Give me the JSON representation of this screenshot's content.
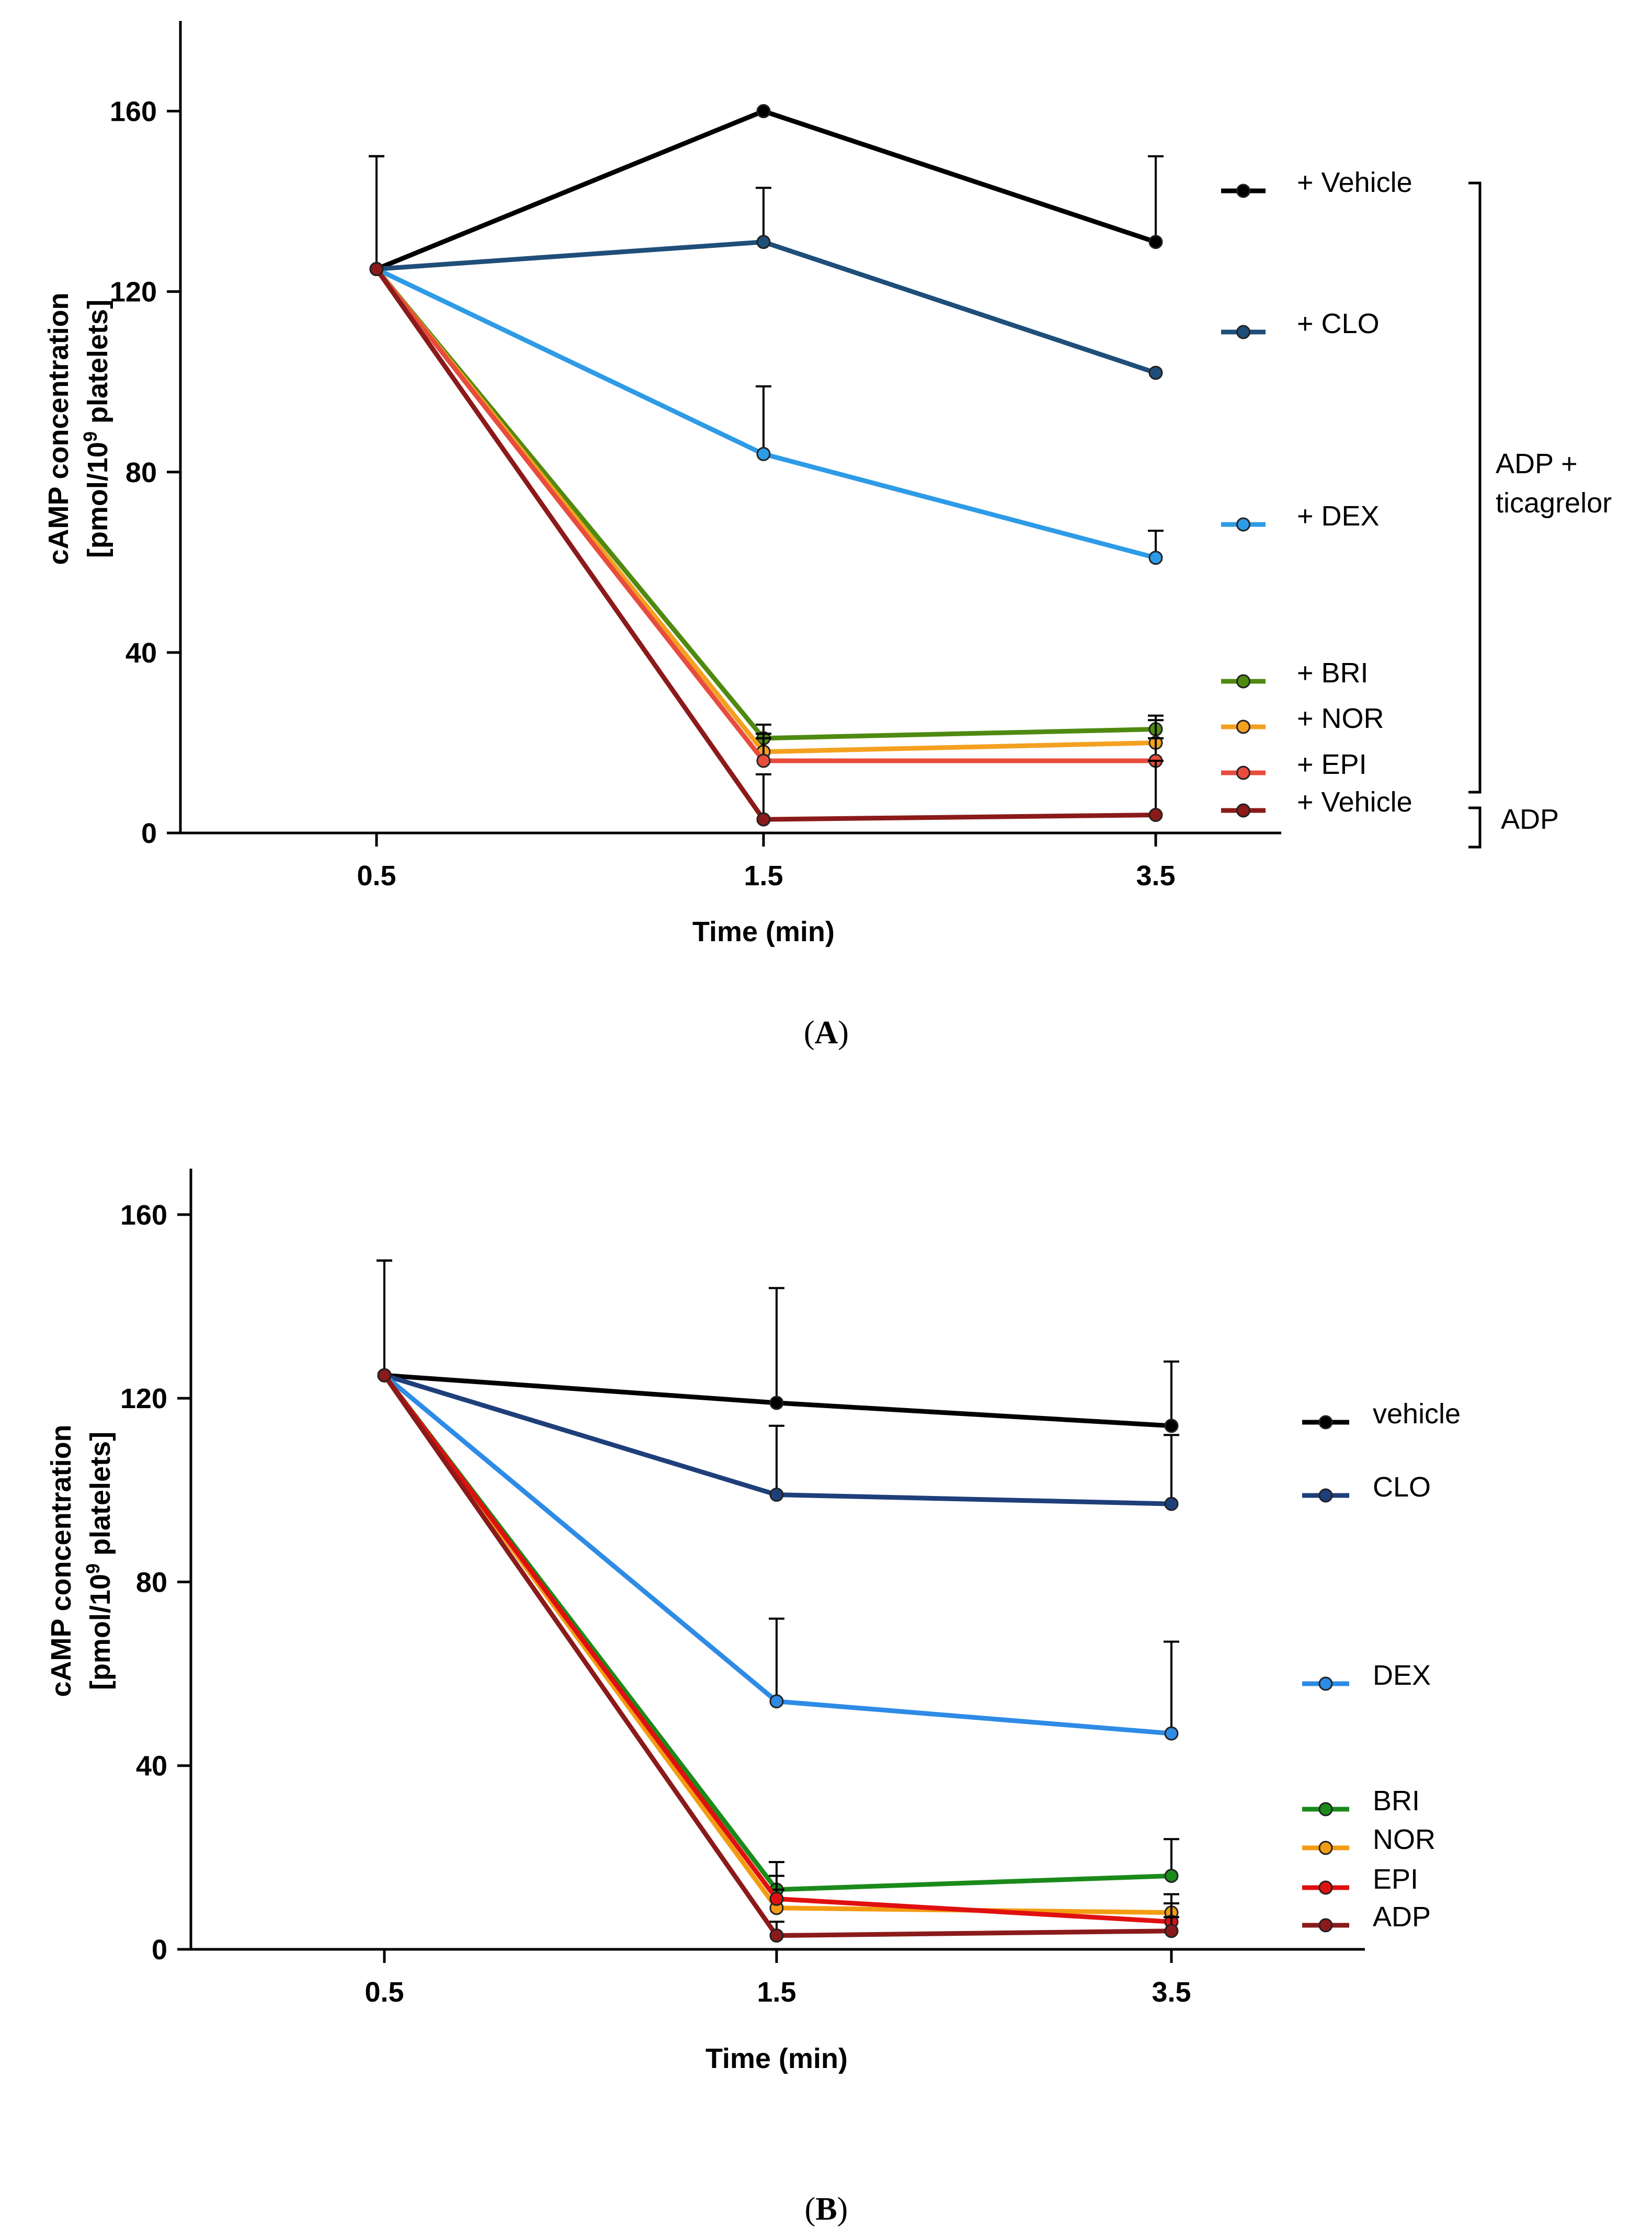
{
  "chart_data": [
    {
      "panel": "A",
      "caption": "A",
      "type": "line",
      "xlabel": "Time (min)",
      "ylabel_line1": "cAMP concentration",
      "ylabel_line2": "[pmol/10",
      "ylabel_sup": "9",
      "ylabel_line2_end": " platelets]",
      "ylim": [
        0,
        180
      ],
      "yticks": [
        0,
        40,
        80,
        120,
        160
      ],
      "categories": [
        "0.5",
        "1.5",
        "3.5"
      ],
      "series": [
        {
          "name": "+ Vehicle",
          "color": "#000000",
          "values": [
            125,
            160,
            131
          ],
          "err": [
            25,
            0,
            19
          ]
        },
        {
          "name": "+ CLO",
          "color": "#1f4e79",
          "values": [
            125,
            131,
            102
          ],
          "err": [
            25,
            12,
            0
          ]
        },
        {
          "name": "+ DEX",
          "color": "#2e9be6",
          "values": [
            125,
            84,
            61
          ],
          "err": [
            25,
            15,
            6
          ]
        },
        {
          "name": "+ BRI",
          "color": "#4f8a10",
          "values": [
            125,
            21,
            23
          ],
          "err": [
            25,
            3,
            3
          ]
        },
        {
          "name": "+ NOR",
          "color": "#f4a020",
          "values": [
            125,
            18,
            20
          ],
          "err": [
            25,
            4,
            5
          ]
        },
        {
          "name": "+ EPI",
          "color": "#e84c3d",
          "values": [
            125,
            16,
            16
          ],
          "err": [
            25,
            5,
            5
          ]
        },
        {
          "name": "+ Vehicle",
          "color": "#8b1a1a",
          "values": [
            125,
            3,
            4
          ],
          "err": [
            25,
            10,
            12
          ]
        }
      ],
      "brackets": [
        {
          "label_lines": [
            "ADP +",
            "ticagrelor"
          ],
          "series_from": 0,
          "series_to": 5
        },
        {
          "label_lines": [
            "ADP"
          ],
          "series_from": 6,
          "series_to": 6
        }
      ]
    },
    {
      "panel": "B",
      "caption": "B",
      "type": "line",
      "xlabel": "Time (min)",
      "ylabel_line1": "cAMP concentration",
      "ylabel_line2": "[pmol/10",
      "ylabel_sup": "9",
      "ylabel_line2_end": " platelets]",
      "ylim": [
        0,
        170
      ],
      "yticks": [
        0,
        40,
        80,
        120,
        160
      ],
      "categories": [
        "0.5",
        "1.5",
        "3.5"
      ],
      "series": [
        {
          "name": "vehicle",
          "color": "#000000",
          "values": [
            125,
            119,
            114
          ],
          "err": [
            25,
            25,
            14
          ]
        },
        {
          "name": "CLO",
          "color": "#1f3f7a",
          "values": [
            125,
            99,
            97
          ],
          "err": [
            25,
            15,
            15
          ]
        },
        {
          "name": "DEX",
          "color": "#2e8be6",
          "values": [
            125,
            54,
            47
          ],
          "err": [
            25,
            18,
            20
          ]
        },
        {
          "name": "BRI",
          "color": "#1a8a1a",
          "values": [
            125,
            13,
            16
          ],
          "err": [
            25,
            6,
            8
          ]
        },
        {
          "name": "NOR",
          "color": "#f39c12",
          "values": [
            125,
            9,
            8
          ],
          "err": [
            25,
            4,
            4
          ]
        },
        {
          "name": "EPI",
          "color": "#e01010",
          "values": [
            125,
            11,
            6
          ],
          "err": [
            25,
            5,
            4
          ]
        },
        {
          "name": "ADP",
          "color": "#8b1a1a",
          "values": [
            125,
            3,
            4
          ],
          "err": [
            25,
            3,
            3
          ]
        }
      ]
    }
  ]
}
